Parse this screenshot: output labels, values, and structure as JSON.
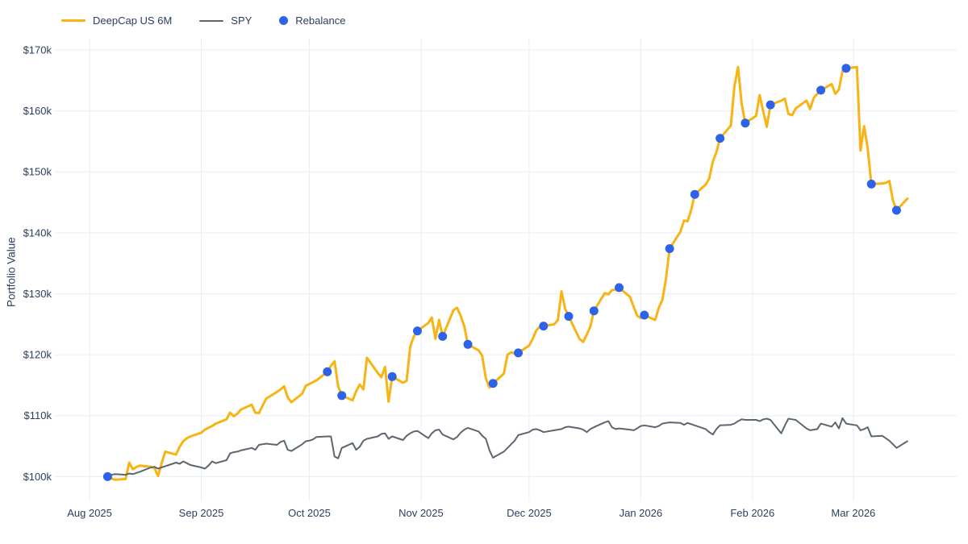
{
  "chart_data": {
    "type": "line",
    "title": "",
    "xlabel": "",
    "ylabel": "Portfolio Value",
    "grid": true,
    "legend_position": "top-left",
    "colors": {
      "deepcap": "#F8B314",
      "spy": "#5D6670",
      "rebalance": "#2D63E8",
      "gridline": "#E9EDF7",
      "text": "#2A3F5F",
      "background": "#FFFFFF"
    },
    "y_ticks": [
      100,
      110,
      120,
      130,
      140,
      150,
      160,
      170
    ],
    "y_tick_prefix": "$",
    "y_tick_suffix": "k",
    "y_domain": [
      95.95,
      171.85
    ],
    "x_domain_days": [
      -8.3,
      240.7
    ],
    "epoch": "2025-08-01",
    "x_ticks": [
      {
        "date": "2025-08-01",
        "label": "Aug 2025"
      },
      {
        "date": "2025-09-01",
        "label": "Sep 2025"
      },
      {
        "date": "2025-10-01",
        "label": "Oct 2025"
      },
      {
        "date": "2025-11-01",
        "label": "Nov 2025"
      },
      {
        "date": "2025-12-01",
        "label": "Dec 2025"
      },
      {
        "date": "2026-01-01",
        "label": "Jan 2026"
      },
      {
        "date": "2026-02-01",
        "label": "Feb 2026"
      },
      {
        "date": "2026-03-01",
        "label": "Mar 2026"
      }
    ],
    "dates": [
      "2025-08-06",
      "2025-08-07",
      "2025-08-08",
      "2025-08-11",
      "2025-08-12",
      "2025-08-13",
      "2025-08-14",
      "2025-08-15",
      "2025-08-18",
      "2025-08-19",
      "2025-08-20",
      "2025-08-21",
      "2025-08-22",
      "2025-08-25",
      "2025-08-26",
      "2025-08-27",
      "2025-08-28",
      "2025-08-29",
      "2025-09-01",
      "2025-09-02",
      "2025-09-03",
      "2025-09-04",
      "2025-09-05",
      "2025-09-08",
      "2025-09-09",
      "2025-09-10",
      "2025-09-11",
      "2025-09-12",
      "2025-09-15",
      "2025-09-16",
      "2025-09-17",
      "2025-09-18",
      "2025-09-19",
      "2025-09-22",
      "2025-09-23",
      "2025-09-24",
      "2025-09-25",
      "2025-09-26",
      "2025-09-29",
      "2025-09-30",
      "2025-10-01",
      "2025-10-02",
      "2025-10-03",
      "2025-10-06",
      "2025-10-07",
      "2025-10-08",
      "2025-10-09",
      "2025-10-10",
      "2025-10-13",
      "2025-10-14",
      "2025-10-15",
      "2025-10-16",
      "2025-10-17",
      "2025-10-20",
      "2025-10-21",
      "2025-10-22",
      "2025-10-23",
      "2025-10-24",
      "2025-10-27",
      "2025-10-28",
      "2025-10-29",
      "2025-10-30",
      "2025-10-31",
      "2025-11-03",
      "2025-11-04",
      "2025-11-05",
      "2025-11-06",
      "2025-11-07",
      "2025-11-10",
      "2025-11-11",
      "2025-11-12",
      "2025-11-13",
      "2025-11-14",
      "2025-11-17",
      "2025-11-18",
      "2025-11-19",
      "2025-11-20",
      "2025-11-21",
      "2025-11-24",
      "2025-11-25",
      "2025-11-26",
      "2025-11-27",
      "2025-11-28",
      "2025-12-01",
      "2025-12-02",
      "2025-12-03",
      "2025-12-04",
      "2025-12-05",
      "2025-12-08",
      "2025-12-09",
      "2025-12-10",
      "2025-12-11",
      "2025-12-12",
      "2025-12-15",
      "2025-12-16",
      "2025-12-17",
      "2025-12-18",
      "2025-12-19",
      "2025-12-22",
      "2025-12-23",
      "2025-12-24",
      "2025-12-25",
      "2025-12-26",
      "2025-12-29",
      "2025-12-30",
      "2025-12-31",
      "2026-01-01",
      "2026-01-02",
      "2026-01-05",
      "2026-01-06",
      "2026-01-07",
      "2026-01-08",
      "2026-01-09",
      "2026-01-12",
      "2026-01-13",
      "2026-01-14",
      "2026-01-15",
      "2026-01-16",
      "2026-01-19",
      "2026-01-20",
      "2026-01-21",
      "2026-01-22",
      "2026-01-23",
      "2026-01-26",
      "2026-01-27",
      "2026-01-28",
      "2026-01-29",
      "2026-01-30",
      "2026-02-02",
      "2026-02-03",
      "2026-02-04",
      "2026-02-05",
      "2026-02-06",
      "2026-02-09",
      "2026-02-10",
      "2026-02-11",
      "2026-02-12",
      "2026-02-13",
      "2026-02-16",
      "2026-02-17",
      "2026-02-18",
      "2026-02-19",
      "2026-02-20",
      "2026-02-23",
      "2026-02-24",
      "2026-02-25",
      "2026-02-26",
      "2026-02-27",
      "2026-03-02",
      "2026-03-03",
      "2026-03-04",
      "2026-03-05",
      "2026-03-06",
      "2026-03-09",
      "2026-03-10",
      "2026-03-11",
      "2026-03-12",
      "2026-03-13",
      "2026-03-16"
    ],
    "series": [
      {
        "name": "DeepCap US 6M",
        "color": "#F8B314",
        "line_width": 3,
        "values": [
          100.0,
          99.7,
          99.5,
          99.6,
          102.3,
          101.2,
          101.6,
          101.8,
          101.6,
          101.4,
          100.1,
          102.2,
          104.1,
          103.6,
          104.9,
          105.8,
          106.3,
          106.6,
          107.2,
          107.7,
          108.0,
          108.3,
          108.7,
          109.4,
          110.5,
          109.9,
          110.3,
          111.0,
          111.8,
          110.5,
          110.4,
          111.6,
          112.8,
          113.9,
          114.3,
          114.8,
          113.0,
          112.2,
          113.6,
          114.9,
          115.2,
          115.5,
          115.8,
          117.2,
          118.2,
          118.9,
          114.8,
          113.3,
          112.5,
          114.0,
          115.1,
          114.3,
          119.5,
          117.0,
          116.3,
          118.0,
          112.3,
          116.4,
          115.4,
          115.7,
          121.3,
          123.0,
          123.9,
          125.2,
          126.1,
          122.6,
          125.7,
          123.0,
          127.3,
          127.7,
          126.4,
          124.7,
          121.7,
          120.7,
          119.8,
          116.1,
          114.6,
          115.3,
          116.9,
          120.0,
          120.4,
          120.2,
          120.3,
          121.5,
          122.6,
          124.0,
          124.6,
          124.7,
          125.0,
          125.7,
          130.4,
          127.5,
          126.3,
          122.6,
          122.1,
          123.3,
          124.6,
          127.2,
          130.1,
          129.9,
          130.6,
          130.7,
          131.0,
          129.5,
          127.9,
          126.4,
          126.0,
          126.5,
          125.7,
          127.7,
          129.0,
          132.5,
          137.4,
          140.2,
          142.0,
          141.9,
          143.8,
          146.3,
          147.9,
          148.9,
          151.7,
          153.2,
          155.5,
          157.6,
          164.1,
          167.2,
          161.2,
          158.0,
          159.2,
          162.6,
          159.9,
          157.4,
          161.0,
          161.7,
          162.0,
          159.5,
          159.3,
          160.4,
          161.7,
          160.3,
          162.1,
          162.8,
          163.4,
          164.4,
          162.8,
          163.5,
          166.5,
          167.0,
          167.2,
          153.5,
          157.5,
          153.8,
          148.0,
          148.1,
          148.2,
          148.5,
          145.3,
          143.7,
          145.6
        ]
      },
      {
        "name": "SPY",
        "color": "#5D6670",
        "line_width": 2,
        "values": [
          100.0,
          100.3,
          100.4,
          100.3,
          100.5,
          100.4,
          100.6,
          100.8,
          101.5,
          101.6,
          101.3,
          101.5,
          101.7,
          102.3,
          102.1,
          102.5,
          102.2,
          101.9,
          101.5,
          101.3,
          101.8,
          102.5,
          102.2,
          102.7,
          103.8,
          104.0,
          104.1,
          104.3,
          104.7,
          104.4,
          105.2,
          105.3,
          105.4,
          105.2,
          105.7,
          105.9,
          104.4,
          104.2,
          105.3,
          105.8,
          105.9,
          106.1,
          106.5,
          106.6,
          106.6,
          103.3,
          103.0,
          104.7,
          105.5,
          104.4,
          104.9,
          105.9,
          106.2,
          106.6,
          107.0,
          107.1,
          106.2,
          106.6,
          106.0,
          106.7,
          107.1,
          107.4,
          107.5,
          106.3,
          107.1,
          107.6,
          107.7,
          106.9,
          106.1,
          106.5,
          107.2,
          107.7,
          108.0,
          107.4,
          106.7,
          106.2,
          104.3,
          103.1,
          104.1,
          104.7,
          105.3,
          105.9,
          106.8,
          107.3,
          107.7,
          107.8,
          107.6,
          107.3,
          107.6,
          107.7,
          107.8,
          108.1,
          108.2,
          107.9,
          107.7,
          107.3,
          107.8,
          108.1,
          108.9,
          109.1,
          108.1,
          107.8,
          107.9,
          107.7,
          107.6,
          107.9,
          108.3,
          108.4,
          108.1,
          108.3,
          108.7,
          108.8,
          108.9,
          108.8,
          108.5,
          108.8,
          108.6,
          108.4,
          107.8,
          107.3,
          106.9,
          107.8,
          108.4,
          108.5,
          108.7,
          109.1,
          109.4,
          109.3,
          109.3,
          109.1,
          109.4,
          109.5,
          109.3,
          107.1,
          108.4,
          109.5,
          109.4,
          109.3,
          107.9,
          107.6,
          107.7,
          107.8,
          108.7,
          108.2,
          108.9,
          107.9,
          109.6,
          108.7,
          108.4,
          107.6,
          107.8,
          108.1,
          106.6,
          106.7,
          106.3,
          105.9,
          105.3,
          104.7,
          105.8
        ]
      }
    ],
    "rebalance": {
      "name": "Rebalance",
      "color": "#2D63E8",
      "marker_radius": 5.5,
      "dates": [
        "2025-08-06",
        "2025-10-06",
        "2025-10-10",
        "2025-10-24",
        "2025-10-31",
        "2025-11-07",
        "2025-11-14",
        "2025-11-21",
        "2025-11-28",
        "2025-12-05",
        "2025-12-12",
        "2025-12-19",
        "2025-12-26",
        "2026-01-02",
        "2026-01-09",
        "2026-01-16",
        "2026-01-23",
        "2026-01-30",
        "2026-02-06",
        "2026-02-20",
        "2026-02-27",
        "2026-03-06",
        "2026-03-13"
      ],
      "values": [
        100.0,
        117.2,
        113.3,
        116.4,
        123.9,
        123.0,
        121.7,
        115.3,
        120.3,
        124.7,
        126.3,
        127.2,
        131.0,
        126.5,
        137.4,
        146.3,
        155.5,
        158.0,
        161.0,
        163.4,
        167.0,
        148.0,
        143.7
      ]
    }
  }
}
